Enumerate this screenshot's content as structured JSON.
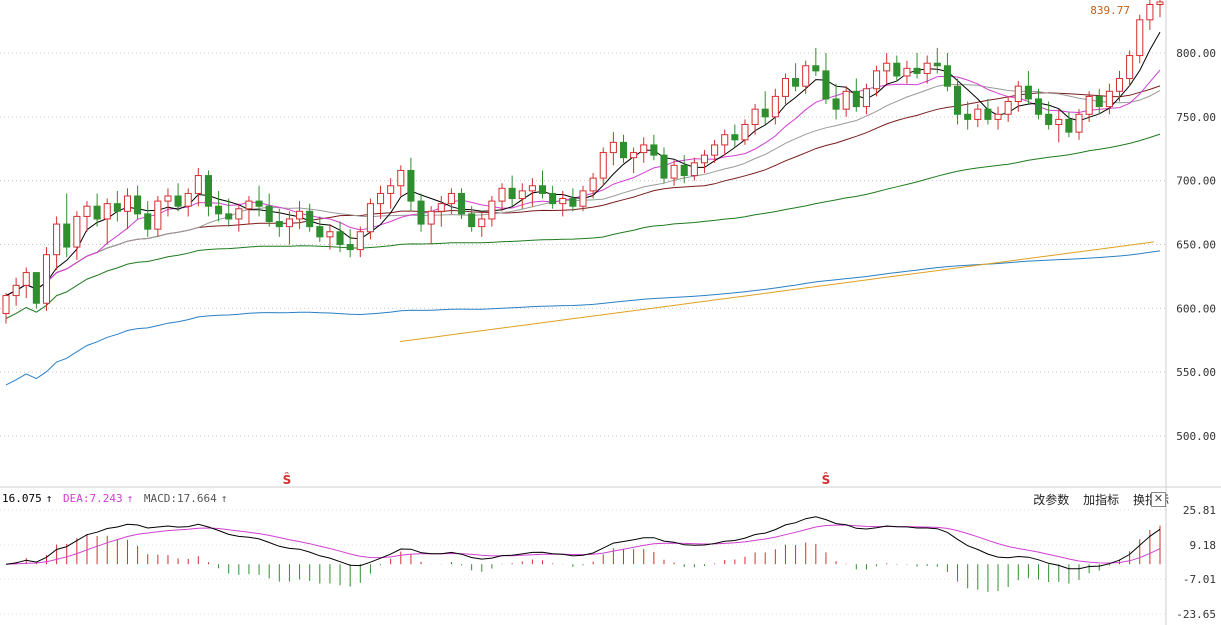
{
  "chart_data": [
    {
      "type": "candlestick",
      "title": "",
      "price_axis": {
        "ticks": [
          500,
          550,
          600,
          650,
          700,
          750,
          800
        ],
        "range": [
          460,
          842
        ]
      },
      "last_price_label": "839.77",
      "marker_symbol": "Ŝ",
      "colors": {
        "up": "#d22f2f",
        "down": "#2f8f2f",
        "ma5": "#000000",
        "ma10": "#d23fd2",
        "ma20": "#9a9a9a",
        "ma30": "#7a1c1c",
        "ma60": "#1f7a1f",
        "ma120": "#2a7fc4",
        "ma250": "#e0a020"
      },
      "ohlc": [
        [
          596,
          612,
          588,
          610
        ],
        [
          610,
          624,
          602,
          618
        ],
        [
          618,
          632,
          608,
          628
        ],
        [
          628,
          628,
          600,
          604
        ],
        [
          604,
          648,
          598,
          642
        ],
        [
          642,
          672,
          630,
          666
        ],
        [
          666,
          690,
          640,
          648
        ],
        [
          648,
          676,
          638,
          672
        ],
        [
          672,
          684,
          660,
          680
        ],
        [
          680,
          690,
          664,
          670
        ],
        [
          670,
          686,
          650,
          682
        ],
        [
          682,
          692,
          668,
          676
        ],
        [
          676,
          694,
          662,
          688
        ],
        [
          688,
          696,
          670,
          674
        ],
        [
          674,
          684,
          656,
          662
        ],
        [
          662,
          688,
          656,
          684
        ],
        [
          684,
          694,
          672,
          688
        ],
        [
          688,
          698,
          676,
          680
        ],
        [
          680,
          694,
          672,
          690
        ],
        [
          690,
          710,
          680,
          704
        ],
        [
          704,
          708,
          672,
          680
        ],
        [
          680,
          692,
          668,
          674
        ],
        [
          674,
          686,
          664,
          670
        ],
        [
          670,
          682,
          660,
          678
        ],
        [
          678,
          688,
          666,
          684
        ],
        [
          684,
          696,
          672,
          680
        ],
        [
          680,
          690,
          664,
          668
        ],
        [
          668,
          678,
          656,
          664
        ],
        [
          664,
          676,
          650,
          670
        ],
        [
          670,
          684,
          662,
          676
        ],
        [
          676,
          682,
          660,
          664
        ],
        [
          664,
          672,
          652,
          656
        ],
        [
          656,
          666,
          646,
          660
        ],
        [
          660,
          668,
          644,
          650
        ],
        [
          650,
          662,
          640,
          646
        ],
        [
          646,
          664,
          640,
          660
        ],
        [
          660,
          686,
          654,
          682
        ],
        [
          682,
          696,
          670,
          690
        ],
        [
          690,
          702,
          678,
          696
        ],
        [
          696,
          712,
          688,
          708
        ],
        [
          708,
          718,
          676,
          684
        ],
        [
          684,
          690,
          660,
          666
        ],
        [
          666,
          680,
          650,
          676
        ],
        [
          676,
          688,
          664,
          682
        ],
        [
          682,
          694,
          674,
          690
        ],
        [
          690,
          694,
          670,
          674
        ],
        [
          674,
          680,
          660,
          664
        ],
        [
          664,
          676,
          656,
          670
        ],
        [
          670,
          688,
          664,
          684
        ],
        [
          684,
          698,
          676,
          694
        ],
        [
          694,
          704,
          680,
          686
        ],
        [
          686,
          698,
          678,
          692
        ],
        [
          692,
          702,
          680,
          696
        ],
        [
          696,
          708,
          686,
          690
        ],
        [
          690,
          696,
          678,
          682
        ],
        [
          682,
          692,
          672,
          686
        ],
        [
          686,
          694,
          676,
          680
        ],
        [
          680,
          696,
          676,
          692
        ],
        [
          692,
          706,
          686,
          702
        ],
        [
          702,
          726,
          696,
          722
        ],
        [
          722,
          738,
          712,
          730
        ],
        [
          730,
          736,
          714,
          718
        ],
        [
          718,
          726,
          706,
          722
        ],
        [
          722,
          734,
          714,
          728
        ],
        [
          728,
          736,
          716,
          720
        ],
        [
          720,
          726,
          698,
          702
        ],
        [
          702,
          716,
          696,
          712
        ],
        [
          712,
          720,
          698,
          704
        ],
        [
          704,
          718,
          700,
          714
        ],
        [
          714,
          724,
          706,
          720
        ],
        [
          720,
          732,
          714,
          728
        ],
        [
          728,
          740,
          720,
          736
        ],
        [
          736,
          744,
          726,
          732
        ],
        [
          732,
          748,
          728,
          744
        ],
        [
          744,
          760,
          736,
          756
        ],
        [
          756,
          770,
          744,
          750
        ],
        [
          750,
          772,
          744,
          766
        ],
        [
          766,
          784,
          760,
          780
        ],
        [
          780,
          792,
          770,
          774
        ],
        [
          774,
          794,
          768,
          790
        ],
        [
          790,
          804,
          782,
          786
        ],
        [
          786,
          800,
          760,
          764
        ],
        [
          764,
          776,
          748,
          756
        ],
        [
          756,
          774,
          750,
          770
        ],
        [
          770,
          780,
          754,
          758
        ],
        [
          758,
          776,
          752,
          772
        ],
        [
          772,
          790,
          766,
          786
        ],
        [
          786,
          800,
          776,
          792
        ],
        [
          792,
          798,
          778,
          782
        ],
        [
          782,
          794,
          776,
          788
        ],
        [
          788,
          800,
          780,
          784
        ],
        [
          784,
          798,
          776,
          792
        ],
        [
          792,
          804,
          784,
          790
        ],
        [
          790,
          800,
          770,
          774
        ],
        [
          774,
          780,
          744,
          752
        ],
        [
          752,
          762,
          740,
          748
        ],
        [
          748,
          760,
          742,
          756
        ],
        [
          756,
          764,
          744,
          748
        ],
        [
          748,
          758,
          740,
          752
        ],
        [
          752,
          766,
          746,
          762
        ],
        [
          762,
          778,
          754,
          774
        ],
        [
          774,
          786,
          760,
          764
        ],
        [
          764,
          772,
          748,
          752
        ],
        [
          752,
          762,
          740,
          744
        ],
        [
          744,
          756,
          730,
          748
        ],
        [
          748,
          754,
          734,
          738
        ],
        [
          738,
          756,
          732,
          752
        ],
        [
          752,
          770,
          746,
          766
        ],
        [
          766,
          772,
          752,
          758
        ],
        [
          758,
          776,
          752,
          770
        ],
        [
          770,
          786,
          762,
          780
        ],
        [
          780,
          802,
          774,
          798
        ],
        [
          798,
          830,
          792,
          826
        ],
        [
          826,
          842,
          818,
          838
        ],
        [
          838,
          842,
          828,
          840
        ]
      ],
      "ma_periods": [
        5,
        10,
        20,
        30,
        60,
        120,
        250
      ],
      "ma250_values": [
        574,
        577,
        580,
        583,
        586,
        589,
        592,
        595,
        598,
        601,
        604,
        607,
        610,
        613,
        616,
        619,
        622,
        625,
        628,
        631,
        634,
        637,
        640,
        643,
        646,
        649,
        652
      ]
    },
    {
      "type": "macd",
      "legend": {
        "dif": "16.075",
        "dea": "DEA:7.243",
        "macd": "MACD:17.664"
      },
      "ticks": [
        "25.81",
        "9.18",
        "-7.01",
        "-23.65"
      ],
      "tick_values": [
        25.81,
        9.18,
        -7.01,
        -23.65
      ],
      "range": [
        -26,
        30
      ],
      "colors": {
        "dif": "#000000",
        "dea": "#d23fd2",
        "pos": "#d22f2f",
        "neg": "#2f8f2f"
      }
    }
  ],
  "toolbar": {
    "params_label": "改参数",
    "add_label": "加指标",
    "switch_label": "换指标",
    "close_label": "✕"
  },
  "legend_arrow": "↑"
}
